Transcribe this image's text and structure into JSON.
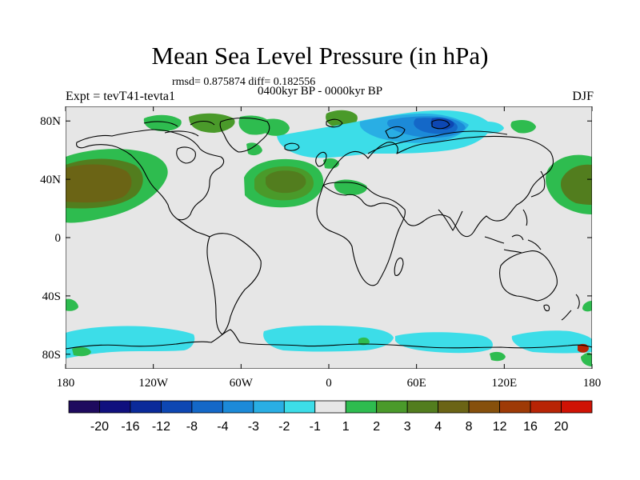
{
  "header": {
    "title": "Mean Sea Level Pressure (in hPa)",
    "stats": "rmsd= 0.875874 diff= 0.182556",
    "period": "0400kyr BP - 0000kyr BP",
    "experiment": "Expt = tevT41-tevta1",
    "season": "DJF"
  },
  "chart_data": {
    "type": "heatmap",
    "title": "Mean Sea Level Pressure (in hPa)",
    "subtitle": "0400kyr BP - 0000kyr BP",
    "xlabel": "",
    "ylabel": "",
    "xlim": [
      -180,
      180
    ],
    "ylim": [
      -90,
      90
    ],
    "x_ticks": [
      {
        "value": -180,
        "label": "180"
      },
      {
        "value": -120,
        "label": "120W"
      },
      {
        "value": -60,
        "label": "60W"
      },
      {
        "value": 0,
        "label": "0"
      },
      {
        "value": 60,
        "label": "60E"
      },
      {
        "value": 120,
        "label": "120E"
      },
      {
        "value": 180,
        "label": "180"
      }
    ],
    "y_ticks": [
      {
        "value": 80,
        "label": "80N"
      },
      {
        "value": 40,
        "label": "40N"
      },
      {
        "value": 0,
        "label": "0"
      },
      {
        "value": -40,
        "label": "40S"
      },
      {
        "value": -80,
        "label": "80S"
      }
    ],
    "colorbar": {
      "colors": [
        "#1e0a5e",
        "#10107e",
        "#0a2a9a",
        "#0d47b3",
        "#1468c8",
        "#1c8ad8",
        "#29aee4",
        "#3cdde8",
        "#e6e6e6",
        "#2ebc4f",
        "#4a9a2a",
        "#527d1e",
        "#6b6415",
        "#86500c",
        "#9e3a06",
        "#b82405",
        "#d01204"
      ],
      "labels": [
        "-20",
        "-16",
        "-12",
        "-8",
        "-4",
        "-3",
        "-2",
        "-1",
        "1",
        "2",
        "3",
        "4",
        "8",
        "12",
        "16",
        "20"
      ]
    },
    "regions": [
      {
        "name": "North Pacific high anomaly (west)",
        "lon": -152,
        "lat": 37,
        "level": 4
      },
      {
        "name": "North Pacific high anomaly (east)",
        "lon": 165,
        "lat": 37,
        "level": 4
      },
      {
        "name": "North Atlantic high anomaly",
        "lon": -35,
        "lat": 38,
        "level": 3
      },
      {
        "name": "Arctic / northern Eurasia low anomaly",
        "lon": 70,
        "lat": 77,
        "level": -4
      },
      {
        "name": "Southern Ocean low anomaly belt",
        "lon": 0,
        "lat": -75,
        "level": -1
      }
    ]
  }
}
